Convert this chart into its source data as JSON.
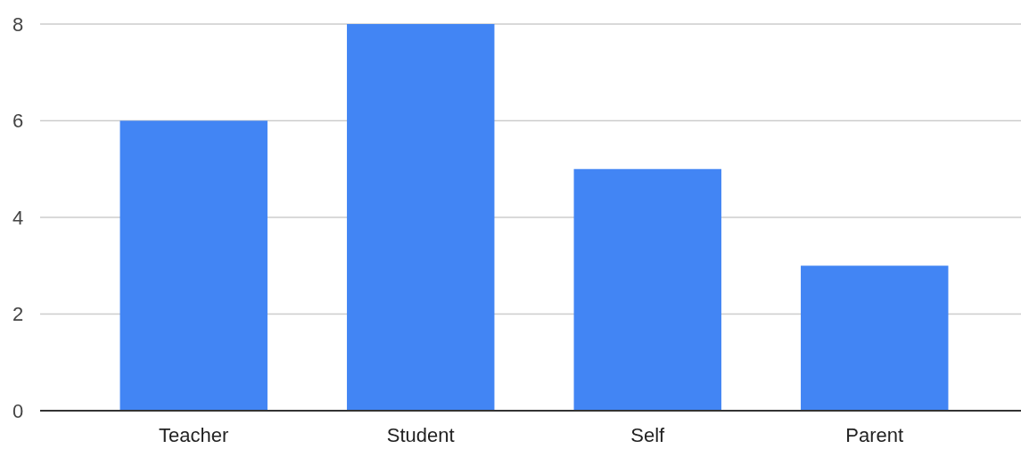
{
  "chart_data": {
    "type": "bar",
    "categories": [
      "Teacher",
      "Student",
      "Self",
      "Parent"
    ],
    "values": [
      6,
      8,
      5,
      3
    ],
    "color": "#4285f4",
    "ylim": [
      0,
      8
    ],
    "yticks": [
      0,
      2,
      4,
      6,
      8
    ],
    "grid": "y"
  }
}
